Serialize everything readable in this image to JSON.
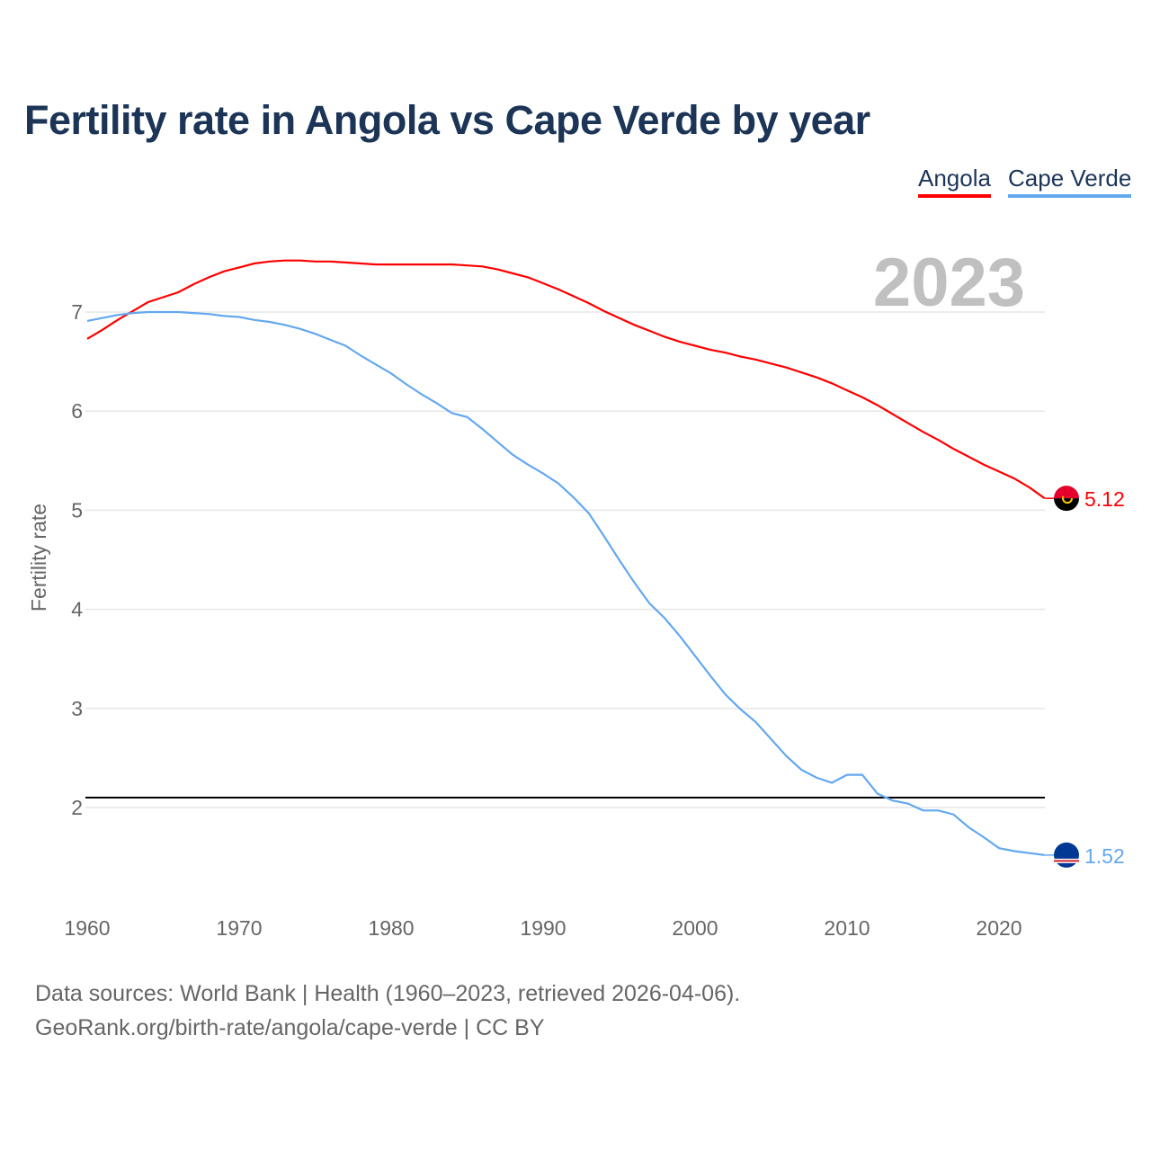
{
  "chart_data": {
    "type": "line",
    "title": "Fertility rate in Angola vs Cape Verde by year",
    "xlabel": "",
    "ylabel": "Fertility rate",
    "year_label": "2023",
    "xlim": [
      1960,
      2023
    ],
    "ylim": [
      1.0,
      7.6
    ],
    "x_ticks": [
      1960,
      1970,
      1980,
      1990,
      2000,
      2010,
      2020
    ],
    "y_ticks": [
      2,
      3,
      4,
      5,
      6,
      7
    ],
    "grid": true,
    "legend_position": "top-right",
    "reference_line": 2.1,
    "x_start": 1960,
    "series": [
      {
        "name": "Angola",
        "color": "#ff0000",
        "end_label": "5.12",
        "flag": "angola-flag",
        "values": [
          6.73,
          6.82,
          6.92,
          7.01,
          7.1,
          7.15,
          7.2,
          7.28,
          7.35,
          7.41,
          7.45,
          7.49,
          7.51,
          7.52,
          7.52,
          7.51,
          7.51,
          7.5,
          7.49,
          7.48,
          7.48,
          7.48,
          7.48,
          7.48,
          7.48,
          7.47,
          7.46,
          7.43,
          7.39,
          7.35,
          7.29,
          7.23,
          7.16,
          7.09,
          7.01,
          6.94,
          6.87,
          6.81,
          6.75,
          6.7,
          6.66,
          6.62,
          6.59,
          6.55,
          6.52,
          6.48,
          6.44,
          6.39,
          6.34,
          6.28,
          6.21,
          6.14,
          6.06,
          5.97,
          5.88,
          5.79,
          5.71,
          5.62,
          5.54,
          5.46,
          5.39,
          5.32,
          5.23,
          5.12
        ]
      },
      {
        "name": "Cape Verde",
        "color": "#64a8f0",
        "end_label": "1.52",
        "flag": "cape-verde-flag",
        "values": [
          6.91,
          6.94,
          6.97,
          6.99,
          7.0,
          7.0,
          7.0,
          6.99,
          6.98,
          6.96,
          6.95,
          6.92,
          6.9,
          6.87,
          6.83,
          6.78,
          6.72,
          6.66,
          6.56,
          6.47,
          6.38,
          6.27,
          6.17,
          6.08,
          5.98,
          5.94,
          5.82,
          5.69,
          5.56,
          5.46,
          5.37,
          5.27,
          5.13,
          4.97,
          4.74,
          4.5,
          4.27,
          4.06,
          3.91,
          3.73,
          3.53,
          3.33,
          3.14,
          2.99,
          2.86,
          2.69,
          2.52,
          2.38,
          2.3,
          2.25,
          2.33,
          2.33,
          2.14,
          2.07,
          2.04,
          1.97,
          1.97,
          1.93,
          1.8,
          1.7,
          1.59,
          1.56,
          1.54,
          1.52
        ]
      }
    ]
  },
  "footer": {
    "line1": "Data sources: World Bank | Health (1960–2023, retrieved 2026-04-06).",
    "line2": "GeoRank.org/birth-rate/angola/cape-verde | CC BY"
  }
}
